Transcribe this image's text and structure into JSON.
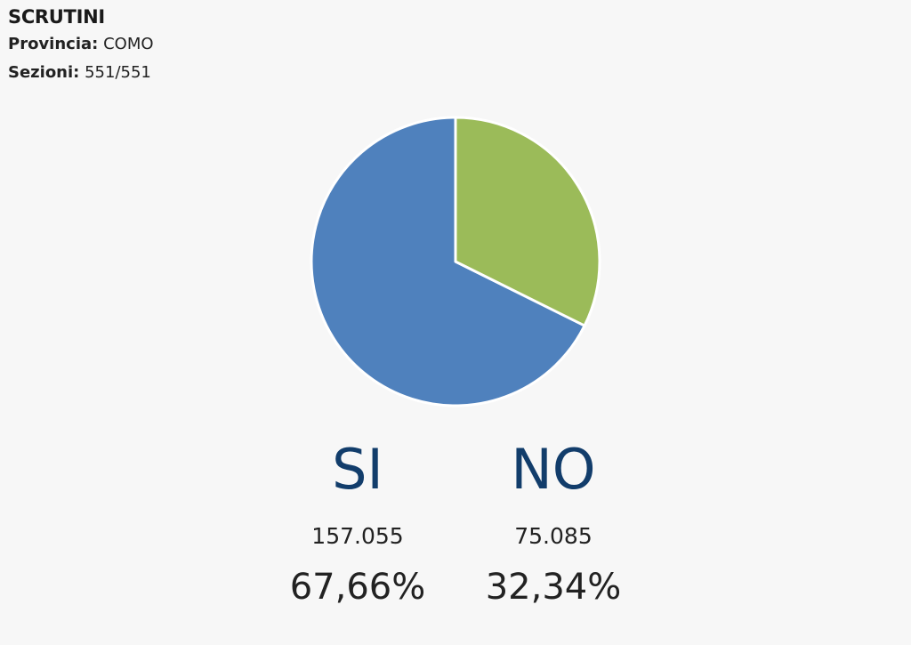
{
  "header": {
    "title": "SCRUTINI",
    "provincia_label": "Provincia:",
    "provincia_value": "COMO",
    "sezioni_label": "Sezioni:",
    "sezioni_value": "551/551"
  },
  "results": {
    "si": {
      "label": "SI",
      "votes": "157.055",
      "percent": "67,66%"
    },
    "no": {
      "label": "NO",
      "votes": "75.085",
      "percent": "32,34%"
    }
  },
  "colors": {
    "si": "#4f81bd",
    "no": "#9bbb59",
    "answer_text": "#123d6b",
    "background": "#f7f7f7"
  },
  "chart_data": {
    "type": "pie",
    "title": "",
    "categories": [
      "SI",
      "NO"
    ],
    "values": [
      67.66,
      32.34
    ],
    "counts": [
      157055,
      75085
    ],
    "colors": [
      "#4f81bd",
      "#9bbb59"
    ],
    "start": "top",
    "direction": "counterclockwise-from-top-for-first-slice",
    "legend": "none"
  }
}
